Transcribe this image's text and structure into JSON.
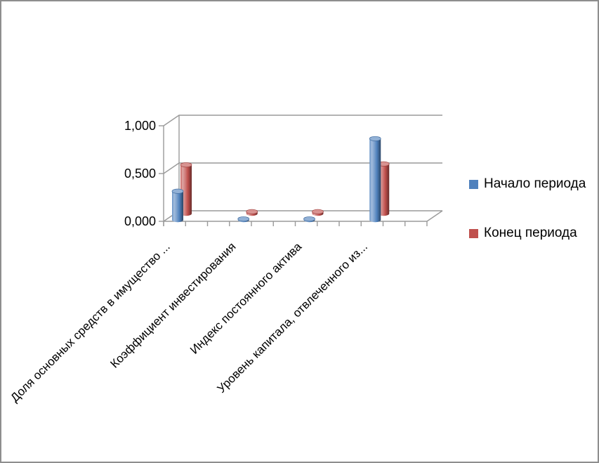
{
  "frame": {
    "background_color": "#ffffff",
    "border_color": "#8e8e8e"
  },
  "chart_data": {
    "type": "bar",
    "subtype": "3d-cylinder",
    "title": "",
    "categories": [
      "Доля основных средств в имущество ...",
      "Коэффициент инвестирования",
      "Индекс постоянного актива",
      "Уровень капитала, отвлеченного из..."
    ],
    "series": [
      {
        "name": "Начало периода",
        "color": "#4f81bd",
        "values": [
          0.3,
          0.01,
          0.01,
          0.85
        ]
      },
      {
        "name": "Конец периода",
        "color": "#c0504d",
        "values": [
          0.51,
          0.02,
          0.02,
          0.52
        ]
      }
    ],
    "ylim": [
      0,
      1
    ],
    "yticks": [
      "0,000",
      "0,500",
      "1,000"
    ],
    "ytick_values": [
      0,
      0.5,
      1
    ],
    "grid": true,
    "gridline_color": "#9a9a9a",
    "axis_color": "#9a9a9a",
    "legend_position": "right",
    "category_label_rotation_deg": 45
  }
}
